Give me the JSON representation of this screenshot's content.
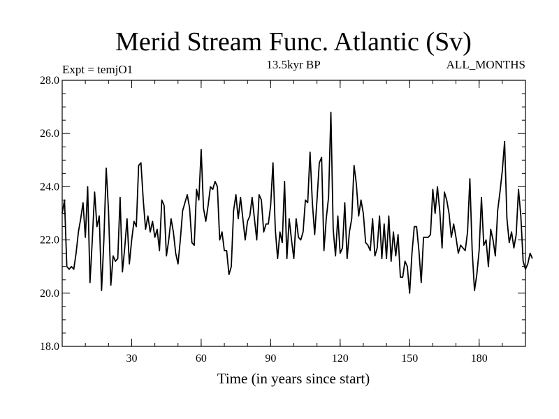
{
  "chart_data": {
    "type": "line",
    "title": "Merid Stream Func. Atlantic (Sv)",
    "subtitle": "13.5kyr BP",
    "left_label": "Expt = temjO1",
    "right_label": "ALL_MONTHS",
    "xlabel": "Time (in years since start)",
    "ylabel": "",
    "xlim": [
      0,
      200
    ],
    "ylim": [
      18,
      28
    ],
    "xticks": [
      30,
      60,
      90,
      120,
      150,
      180
    ],
    "xtick_labels": [
      "30",
      "60",
      "90",
      "120",
      "150",
      "180"
    ],
    "yticks": [
      18,
      20,
      22,
      24,
      26,
      28
    ],
    "ytick_labels": [
      "18.0",
      "20.0",
      "22.0",
      "24.0",
      "26.0",
      "28.0"
    ],
    "series": [
      {
        "name": "Merid Stream Func. Atlantic",
        "color": "#000000",
        "x_start": 0,
        "x_step": 1,
        "values": [
          23.0,
          23.5,
          21.0,
          20.9,
          21.0,
          20.9,
          21.5,
          22.3,
          22.8,
          23.4,
          22.1,
          24.0,
          20.4,
          22.0,
          23.8,
          22.5,
          22.9,
          20.1,
          22.0,
          24.7,
          23.1,
          20.3,
          21.4,
          21.2,
          21.3,
          23.6,
          20.8,
          21.7,
          22.8,
          21.1,
          22.0,
          22.7,
          22.5,
          24.8,
          24.9,
          23.5,
          22.4,
          22.9,
          22.3,
          22.7,
          22.1,
          22.4,
          21.6,
          23.5,
          23.3,
          21.4,
          22.0,
          22.8,
          22.3,
          21.5,
          21.1,
          22.0,
          23.1,
          23.4,
          23.7,
          23.2,
          21.9,
          21.8,
          23.9,
          23.5,
          25.4,
          23.2,
          22.7,
          23.3,
          24.0,
          23.9,
          24.2,
          24.0,
          22.0,
          22.3,
          21.6,
          21.6,
          20.7,
          21.0,
          23.1,
          23.7,
          22.8,
          23.6,
          22.8,
          22.0,
          22.7,
          22.9,
          23.6,
          22.8,
          22.0,
          23.7,
          23.5,
          22.3,
          22.6,
          22.6,
          23.3,
          24.9,
          22.4,
          21.3,
          22.3,
          21.9,
          24.2,
          21.3,
          22.8,
          22.0,
          21.3,
          22.8,
          22.1,
          22.0,
          22.3,
          23.5,
          23.4,
          25.3,
          23.4,
          22.2,
          23.5,
          24.9,
          25.1,
          21.6,
          22.8,
          23.6,
          26.8,
          22.4,
          21.4,
          22.9,
          21.5,
          21.7,
          23.4,
          21.3,
          22.3,
          22.8,
          24.8,
          24.1,
          22.9,
          23.5,
          23.0,
          21.9,
          21.8,
          21.6,
          22.8,
          21.4,
          21.7,
          22.9,
          21.3,
          22.6,
          21.3,
          22.9,
          21.2,
          22.3,
          21.4,
          22.2,
          20.6,
          20.6,
          21.2,
          21.0,
          20.0,
          21.5,
          22.5,
          22.5,
          21.6,
          20.4,
          22.1,
          22.1,
          22.1,
          22.2,
          23.9,
          23.0,
          24.0,
          23.1,
          21.7,
          23.8,
          23.5,
          23.0,
          22.1,
          22.6,
          22.1,
          21.5,
          21.8,
          21.7,
          21.6,
          22.3,
          24.3,
          21.6,
          20.1,
          20.7,
          21.6,
          23.6,
          21.8,
          22.0,
          21.0,
          22.4,
          22.0,
          21.4,
          23.1,
          23.8,
          24.6,
          25.7,
          22.8,
          21.9,
          22.3,
          21.7,
          22.2,
          23.9,
          22.9,
          21.2,
          20.9,
          21.1,
          21.5,
          21.3
        ]
      }
    ]
  }
}
